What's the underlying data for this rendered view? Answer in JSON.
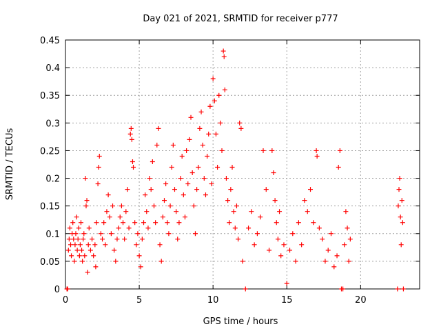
{
  "chart_data": {
    "type": "scatter",
    "title": "Day 021 of 2021, SRMTID for receiver p777",
    "xlabel": "GPS time / hours",
    "ylabel": "SRMTID / TECUs",
    "xlim": [
      0,
      24
    ],
    "ylim": [
      0,
      0.45
    ],
    "grid": true,
    "marker": "+",
    "color": "#ff0000",
    "xticks": [
      0,
      5,
      10,
      15,
      20
    ],
    "yticks": [
      0,
      0.05,
      0.1,
      0.15,
      0.2,
      0.25,
      0.3,
      0.35,
      0.4,
      0.45
    ],
    "xtick_labels": [
      "0",
      "5",
      "10",
      "15",
      "20"
    ],
    "ytick_labels": [
      "0",
      "0.05",
      "0.1",
      "0.15",
      "0.2",
      "0.25",
      "0.3",
      "0.35",
      "0.4",
      "0.45"
    ],
    "series": [
      {
        "name": "SRMTID",
        "points": [
          [
            0.1,
            0.0
          ],
          [
            0.15,
            0.0
          ],
          [
            0.2,
            0.07
          ],
          [
            0.25,
            0.09
          ],
          [
            0.3,
            0.11
          ],
          [
            0.35,
            0.08
          ],
          [
            0.4,
            0.06
          ],
          [
            0.45,
            0.1
          ],
          [
            0.5,
            0.12
          ],
          [
            0.55,
            0.09
          ],
          [
            0.6,
            0.05
          ],
          [
            0.65,
            0.08
          ],
          [
            0.7,
            0.1
          ],
          [
            0.75,
            0.13
          ],
          [
            0.8,
            0.07
          ],
          [
            0.85,
            0.09
          ],
          [
            0.9,
            0.11
          ],
          [
            0.95,
            0.06
          ],
          [
            1.0,
            0.08
          ],
          [
            1.05,
            0.12
          ],
          [
            1.1,
            0.07
          ],
          [
            1.15,
            0.05
          ],
          [
            1.2,
            0.09
          ],
          [
            1.25,
            0.1
          ],
          [
            1.3,
            0.06
          ],
          [
            1.35,
            0.2
          ],
          [
            1.4,
            0.15
          ],
          [
            1.45,
            0.16
          ],
          [
            1.5,
            0.03
          ],
          [
            1.55,
            0.08
          ],
          [
            1.6,
            0.11
          ],
          [
            1.7,
            0.07
          ],
          [
            1.8,
            0.09
          ],
          [
            1.9,
            0.06
          ],
          [
            2.0,
            0.08
          ],
          [
            2.05,
            0.04
          ],
          [
            2.1,
            0.12
          ],
          [
            2.2,
            0.19
          ],
          [
            2.25,
            0.22
          ],
          [
            2.3,
            0.24
          ],
          [
            2.4,
            0.1
          ],
          [
            2.5,
            0.09
          ],
          [
            2.6,
            0.12
          ],
          [
            2.7,
            0.08
          ],
          [
            2.8,
            0.14
          ],
          [
            2.9,
            0.17
          ],
          [
            3.0,
            0.13
          ],
          [
            3.1,
            0.1
          ],
          [
            3.2,
            0.15
          ],
          [
            3.3,
            0.07
          ],
          [
            3.4,
            0.05
          ],
          [
            3.5,
            0.09
          ],
          [
            3.6,
            0.11
          ],
          [
            3.7,
            0.13
          ],
          [
            3.8,
            0.15
          ],
          [
            3.9,
            0.12
          ],
          [
            4.0,
            0.09
          ],
          [
            4.1,
            0.14
          ],
          [
            4.2,
            0.18
          ],
          [
            4.3,
            0.11
          ],
          [
            4.4,
            0.28
          ],
          [
            4.45,
            0.29
          ],
          [
            4.5,
            0.27
          ],
          [
            4.55,
            0.23
          ],
          [
            4.6,
            0.22
          ],
          [
            4.7,
            0.12
          ],
          [
            4.8,
            0.08
          ],
          [
            4.9,
            0.1
          ],
          [
            5.0,
            0.06
          ],
          [
            5.1,
            0.04
          ],
          [
            5.2,
            0.09
          ],
          [
            5.3,
            0.12
          ],
          [
            5.4,
            0.17
          ],
          [
            5.5,
            0.14
          ],
          [
            5.6,
            0.11
          ],
          [
            5.7,
            0.2
          ],
          [
            5.8,
            0.18
          ],
          [
            5.9,
            0.23
          ],
          [
            6.0,
            0.15
          ],
          [
            6.1,
            0.12
          ],
          [
            6.2,
            0.26
          ],
          [
            6.3,
            0.29
          ],
          [
            6.4,
            0.08
          ],
          [
            6.5,
            0.05
          ],
          [
            6.6,
            0.13
          ],
          [
            6.7,
            0.16
          ],
          [
            6.8,
            0.19
          ],
          [
            6.9,
            0.12
          ],
          [
            7.0,
            0.1
          ],
          [
            7.1,
            0.15
          ],
          [
            7.2,
            0.22
          ],
          [
            7.3,
            0.26
          ],
          [
            7.4,
            0.18
          ],
          [
            7.5,
            0.14
          ],
          [
            7.6,
            0.09
          ],
          [
            7.7,
            0.12
          ],
          [
            7.8,
            0.2
          ],
          [
            7.9,
            0.24
          ],
          [
            8.0,
            0.17
          ],
          [
            8.1,
            0.13
          ],
          [
            8.2,
            0.25
          ],
          [
            8.3,
            0.19
          ],
          [
            8.4,
            0.27
          ],
          [
            8.5,
            0.31
          ],
          [
            8.6,
            0.21
          ],
          [
            8.7,
            0.15
          ],
          [
            8.8,
            0.1
          ],
          [
            8.9,
            0.18
          ],
          [
            9.0,
            0.22
          ],
          [
            9.1,
            0.29
          ],
          [
            9.2,
            0.32
          ],
          [
            9.3,
            0.26
          ],
          [
            9.4,
            0.2
          ],
          [
            9.5,
            0.17
          ],
          [
            9.6,
            0.24
          ],
          [
            9.7,
            0.28
          ],
          [
            9.8,
            0.33
          ],
          [
            9.9,
            0.19
          ],
          [
            10.0,
            0.38
          ],
          [
            10.1,
            0.34
          ],
          [
            10.2,
            0.28
          ],
          [
            10.3,
            0.22
          ],
          [
            10.4,
            0.35
          ],
          [
            10.5,
            0.3
          ],
          [
            10.6,
            0.25
          ],
          [
            10.7,
            0.43
          ],
          [
            10.75,
            0.42
          ],
          [
            10.8,
            0.36
          ],
          [
            10.9,
            0.2
          ],
          [
            11.0,
            0.16
          ],
          [
            11.1,
            0.12
          ],
          [
            11.2,
            0.18
          ],
          [
            11.3,
            0.22
          ],
          [
            11.4,
            0.14
          ],
          [
            11.5,
            0.11
          ],
          [
            11.6,
            0.15
          ],
          [
            11.7,
            0.09
          ],
          [
            11.8,
            0.3
          ],
          [
            11.9,
            0.29
          ],
          [
            12.0,
            0.05
          ],
          [
            12.2,
            0.0
          ],
          [
            12.4,
            0.11
          ],
          [
            12.6,
            0.14
          ],
          [
            12.8,
            0.08
          ],
          [
            13.0,
            0.1
          ],
          [
            13.2,
            0.13
          ],
          [
            13.4,
            0.25
          ],
          [
            13.6,
            0.18
          ],
          [
            13.8,
            0.07
          ],
          [
            14.0,
            0.25
          ],
          [
            14.1,
            0.21
          ],
          [
            14.2,
            0.16
          ],
          [
            14.3,
            0.12
          ],
          [
            14.4,
            0.09
          ],
          [
            14.5,
            0.14
          ],
          [
            14.6,
            0.06
          ],
          [
            14.8,
            0.08
          ],
          [
            15.0,
            0.01
          ],
          [
            15.2,
            0.07
          ],
          [
            15.4,
            0.1
          ],
          [
            15.6,
            0.05
          ],
          [
            15.8,
            0.12
          ],
          [
            16.0,
            0.08
          ],
          [
            16.2,
            0.16
          ],
          [
            16.4,
            0.14
          ],
          [
            16.6,
            0.18
          ],
          [
            16.8,
            0.12
          ],
          [
            17.0,
            0.25
          ],
          [
            17.05,
            0.24
          ],
          [
            17.2,
            0.11
          ],
          [
            17.4,
            0.09
          ],
          [
            17.6,
            0.05
          ],
          [
            17.8,
            0.07
          ],
          [
            18.0,
            0.1
          ],
          [
            18.2,
            0.04
          ],
          [
            18.4,
            0.06
          ],
          [
            18.5,
            0.22
          ],
          [
            18.6,
            0.25
          ],
          [
            18.7,
            0.0
          ],
          [
            18.8,
            0.0
          ],
          [
            18.9,
            0.08
          ],
          [
            19.0,
            0.14
          ],
          [
            19.1,
            0.11
          ],
          [
            19.2,
            0.05
          ],
          [
            19.3,
            0.09
          ],
          [
            22.5,
            0.0
          ],
          [
            22.55,
            0.15
          ],
          [
            22.6,
            0.18
          ],
          [
            22.65,
            0.2
          ],
          [
            22.7,
            0.13
          ],
          [
            22.75,
            0.08
          ],
          [
            22.8,
            0.16
          ],
          [
            22.85,
            0.12
          ],
          [
            22.9,
            0.0
          ]
        ]
      }
    ]
  }
}
